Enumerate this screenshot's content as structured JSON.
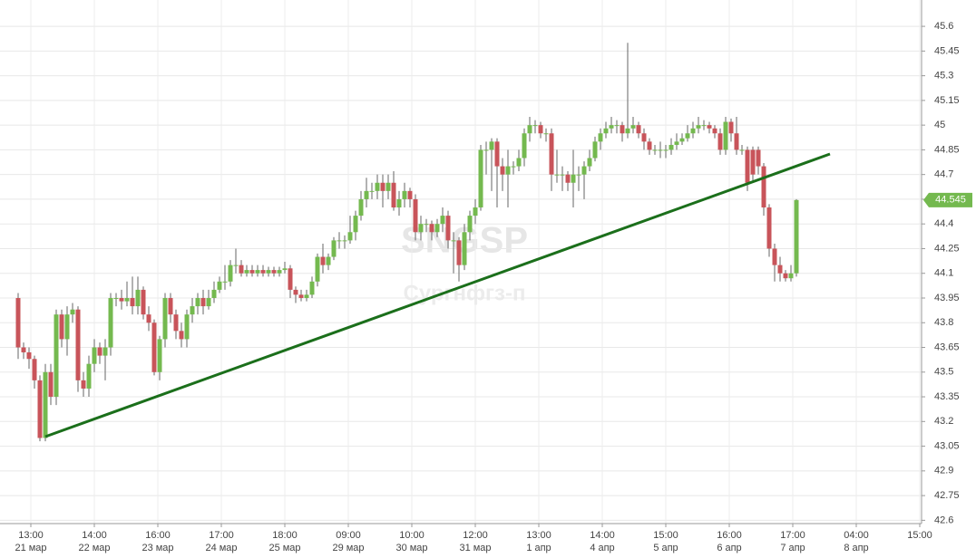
{
  "chart_data": {
    "type": "candlestick",
    "watermark_ticker": "SNGSP",
    "watermark_name": "Сургнфгз-п",
    "up_color": "#74b94f",
    "down_color": "#c8545a",
    "grid": true,
    "ylim": [
      42.58,
      45.76
    ],
    "yticks": [
      42.6,
      42.75,
      42.9,
      43.05,
      43.2,
      43.35,
      43.5,
      43.65,
      43.8,
      43.95,
      44.1,
      44.25,
      44.4,
      44.55,
      44.7,
      44.85,
      45,
      45.15,
      45.3,
      45.45,
      45.6
    ],
    "x_ticks": [
      {
        "time": "13:00",
        "date": "21 мар"
      },
      {
        "time": "14:00",
        "date": "22 мар"
      },
      {
        "time": "16:00",
        "date": "23 мар"
      },
      {
        "time": "17:00",
        "date": "24 мар"
      },
      {
        "time": "18:00",
        "date": "25 мар"
      },
      {
        "time": "09:00",
        "date": "29 мар"
      },
      {
        "time": "10:00",
        "date": "30 мар"
      },
      {
        "time": "12:00",
        "date": "31 мар"
      },
      {
        "time": "13:00",
        "date": "1 апр"
      },
      {
        "time": "14:00",
        "date": "4 апр"
      },
      {
        "time": "15:00",
        "date": "5 апр"
      },
      {
        "time": "16:00",
        "date": "6 апр"
      },
      {
        "time": "17:00",
        "date": "7 апр"
      },
      {
        "time": "04:00",
        "date": "8 апр"
      },
      {
        "time": "15:00"
      }
    ],
    "open": [
      43.95,
      43.65,
      43.62,
      43.58,
      43.45,
      43.1,
      43.5,
      43.35,
      43.85,
      43.7,
      43.85,
      43.88,
      43.45,
      43.4,
      43.55,
      43.65,
      43.6,
      43.65,
      43.95,
      43.95,
      43.93,
      43.95,
      43.9,
      44.0,
      43.85,
      43.8,
      43.5,
      43.7,
      43.95,
      43.85,
      43.75,
      43.7,
      43.85,
      43.9,
      43.95,
      43.9,
      43.95,
      44.0,
      44.05,
      44.05,
      44.15,
      44.15,
      44.1,
      44.12,
      44.1,
      44.12,
      44.1,
      44.12,
      44.1,
      44.12,
      44.13,
      44.0,
      43.97,
      43.95,
      43.97,
      44.05,
      44.2,
      44.15,
      44.2,
      44.3,
      44.3,
      44.3,
      44.35,
      44.45,
      44.55,
      44.6,
      44.6,
      44.65,
      44.6,
      44.65,
      44.5,
      44.55,
      44.6,
      44.55,
      44.35,
      44.4,
      44.4,
      44.35,
      44.4,
      44.45,
      44.3,
      44.3,
      44.15,
      44.35,
      44.45,
      44.5,
      44.85,
      44.85,
      44.9,
      44.75,
      44.7,
      44.75,
      44.75,
      44.8,
      44.95,
      45.0,
      45.0,
      44.95,
      44.95,
      44.7,
      44.7,
      44.7,
      44.65,
      44.7,
      44.7,
      44.75,
      44.8,
      44.9,
      44.95,
      44.98,
      45.0,
      45.0,
      44.95,
      44.98,
      45.0,
      44.95,
      44.9,
      44.85,
      44.85,
      44.85,
      44.85,
      44.88,
      44.9,
      44.92,
      44.95,
      44.98,
      45.0,
      45.0,
      44.98,
      44.95,
      44.85,
      45.02,
      44.95,
      44.85,
      44.85,
      44.85,
      44.85,
      44.75,
      44.5,
      44.25,
      44.15,
      44.1,
      44.07,
      44.1
    ],
    "high": [
      43.98,
      43.68,
      43.65,
      43.6,
      43.48,
      43.55,
      43.55,
      43.88,
      43.88,
      43.9,
      43.92,
      43.9,
      43.5,
      43.6,
      43.7,
      43.68,
      43.7,
      43.98,
      43.98,
      44.0,
      44.05,
      44.08,
      44.08,
      44.02,
      43.9,
      43.82,
      43.72,
      43.98,
      43.98,
      43.88,
      43.8,
      43.88,
      43.95,
      43.98,
      44.0,
      44.0,
      44.05,
      44.08,
      44.15,
      44.18,
      44.25,
      44.18,
      44.15,
      44.15,
      44.15,
      44.15,
      44.14,
      44.14,
      44.14,
      44.17,
      44.15,
      44.02,
      44.0,
      44.0,
      44.08,
      44.22,
      44.28,
      44.22,
      44.32,
      44.35,
      44.33,
      44.45,
      44.48,
      44.6,
      44.68,
      44.65,
      44.7,
      44.7,
      44.7,
      44.72,
      44.6,
      44.65,
      44.62,
      44.58,
      44.45,
      44.43,
      44.42,
      44.43,
      44.5,
      44.48,
      44.35,
      44.32,
      44.4,
      44.48,
      44.55,
      44.88,
      44.9,
      44.92,
      44.92,
      44.8,
      44.85,
      44.78,
      44.85,
      44.98,
      45.05,
      45.03,
      45.02,
      44.98,
      44.98,
      44.85,
      44.75,
      44.72,
      44.85,
      44.75,
      44.78,
      44.85,
      44.93,
      44.98,
      45.02,
      45.05,
      45.03,
      45.02,
      45.5,
      45.05,
      45.02,
      44.98,
      44.92,
      44.88,
      44.9,
      44.88,
      44.92,
      44.95,
      44.95,
      45.0,
      45.02,
      45.05,
      45.03,
      45.02,
      45.0,
      44.98,
      45.05,
      45.04,
      45.05,
      44.88,
      44.87,
      44.87,
      44.87,
      44.77,
      44.52,
      44.28,
      44.2,
      44.12,
      44.15,
      44.55
    ],
    "low": [
      43.58,
      43.58,
      43.52,
      43.4,
      43.08,
      43.08,
      43.3,
      43.3,
      43.65,
      43.6,
      43.8,
      43.38,
      43.35,
      43.35,
      43.5,
      43.55,
      43.45,
      43.6,
      43.9,
      43.88,
      43.9,
      43.85,
      43.85,
      43.82,
      43.75,
      43.48,
      43.45,
      43.65,
      43.8,
      43.7,
      43.65,
      43.65,
      43.8,
      43.85,
      43.85,
      43.88,
      43.92,
      43.98,
      44.0,
      44.02,
      44.1,
      44.08,
      44.08,
      44.08,
      44.08,
      44.08,
      44.08,
      44.08,
      44.08,
      44.1,
      43.95,
      43.92,
      43.93,
      43.93,
      43.95,
      44.02,
      44.1,
      44.12,
      44.18,
      44.25,
      44.25,
      44.28,
      44.3,
      44.42,
      44.5,
      44.55,
      44.55,
      44.5,
      44.55,
      44.48,
      44.45,
      44.5,
      44.5,
      44.3,
      44.3,
      44.35,
      44.3,
      44.32,
      44.35,
      44.25,
      44.1,
      44.05,
      44.12,
      44.3,
      44.4,
      44.48,
      44.7,
      44.6,
      44.5,
      44.6,
      44.5,
      44.7,
      44.72,
      44.75,
      44.9,
      44.95,
      44.92,
      44.9,
      44.6,
      44.65,
      44.6,
      44.6,
      44.5,
      44.6,
      44.55,
      44.72,
      44.78,
      44.85,
      44.92,
      44.95,
      44.95,
      44.9,
      44.92,
      44.95,
      44.92,
      44.85,
      44.82,
      44.82,
      44.8,
      44.8,
      44.82,
      44.85,
      44.88,
      44.9,
      44.92,
      44.95,
      44.97,
      44.95,
      44.92,
      44.82,
      44.82,
      44.9,
      44.82,
      44.82,
      44.6,
      44.65,
      44.7,
      44.45,
      44.2,
      44.05,
      44.05,
      44.05,
      44.05,
      44.08
    ],
    "close": [
      43.65,
      43.62,
      43.58,
      43.45,
      43.1,
      43.5,
      43.35,
      43.85,
      43.7,
      43.85,
      43.88,
      43.45,
      43.4,
      43.55,
      43.65,
      43.6,
      43.65,
      43.95,
      43.95,
      43.93,
      43.95,
      43.9,
      44.0,
      43.85,
      43.8,
      43.5,
      43.7,
      43.95,
      43.85,
      43.75,
      43.7,
      43.85,
      43.9,
      43.95,
      43.9,
      43.95,
      44.0,
      44.05,
      44.05,
      44.15,
      44.15,
      44.1,
      44.12,
      44.1,
      44.12,
      44.1,
      44.12,
      44.1,
      44.12,
      44.13,
      44.0,
      43.97,
      43.95,
      43.97,
      44.05,
      44.2,
      44.15,
      44.2,
      44.3,
      44.3,
      44.3,
      44.35,
      44.45,
      44.55,
      44.6,
      44.6,
      44.65,
      44.6,
      44.65,
      44.5,
      44.55,
      44.6,
      44.55,
      44.35,
      44.4,
      44.4,
      44.35,
      44.4,
      44.45,
      44.3,
      44.3,
      44.15,
      44.35,
      44.45,
      44.5,
      44.85,
      44.85,
      44.9,
      44.75,
      44.7,
      44.75,
      44.75,
      44.8,
      44.95,
      45.0,
      45.0,
      44.95,
      44.95,
      44.7,
      44.7,
      44.7,
      44.65,
      44.7,
      44.7,
      44.75,
      44.8,
      44.9,
      44.95,
      44.98,
      45.0,
      45.0,
      44.95,
      44.98,
      45.0,
      44.95,
      44.9,
      44.85,
      44.85,
      44.85,
      44.85,
      44.88,
      44.9,
      44.92,
      44.95,
      44.98,
      45.0,
      45.0,
      44.98,
      44.95,
      44.85,
      45.02,
      44.95,
      44.85,
      44.85,
      44.65,
      44.7,
      44.75,
      44.5,
      44.25,
      44.15,
      44.1,
      44.07,
      44.1,
      44.545
    ]
  }
}
